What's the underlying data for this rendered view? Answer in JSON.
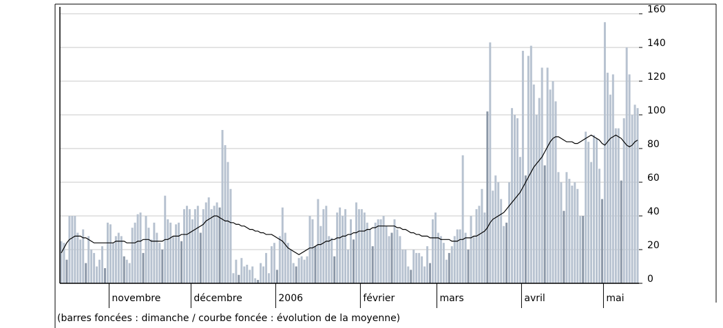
{
  "chart_data": {
    "type": "bar",
    "caption": "(barres foncées : dimanche / courbe foncée : évolution de la moyenne)",
    "categories": [
      null,
      null,
      null,
      null,
      null,
      null,
      null,
      null,
      null,
      null,
      null,
      null,
      null,
      null,
      null,
      null,
      null,
      null,
      "novembre",
      null,
      null,
      null,
      null,
      null,
      null,
      null,
      null,
      null,
      null,
      null,
      null,
      null,
      null,
      null,
      null,
      null,
      null,
      null,
      null,
      null,
      null,
      null,
      null,
      null,
      null,
      null,
      null,
      null,
      "décembre",
      null,
      null,
      null,
      null,
      null,
      null,
      null,
      null,
      null,
      null,
      null,
      null,
      null,
      null,
      null,
      null,
      null,
      null,
      null,
      null,
      null,
      null,
      null,
      null,
      null,
      null,
      null,
      null,
      null,
      null,
      "2006",
      null,
      null,
      null,
      null,
      null,
      null,
      null,
      null,
      null,
      null,
      null,
      null,
      null,
      null,
      null,
      null,
      null,
      null,
      null,
      null,
      null,
      null,
      null,
      null,
      null,
      null,
      null,
      null,
      null,
      null,
      "février",
      null,
      null,
      null,
      null,
      null,
      null,
      null,
      null,
      null,
      null,
      null,
      null,
      null,
      null,
      null,
      null,
      null,
      null,
      null,
      null,
      null,
      null,
      null,
      null,
      null,
      null,
      null,
      "mars",
      null,
      null,
      null,
      null,
      null,
      null,
      null,
      null,
      null,
      null,
      null,
      null,
      null,
      null,
      null,
      null,
      null,
      null,
      null,
      null,
      null,
      null,
      null,
      null,
      null,
      null,
      null,
      null,
      null,
      null,
      "avril",
      null,
      null,
      null,
      null,
      null,
      null,
      null,
      null,
      null,
      null,
      null,
      null,
      null,
      null,
      null,
      null,
      null,
      null,
      null,
      null,
      null,
      null,
      null,
      null,
      null,
      null,
      null,
      null,
      null,
      "mai",
      null,
      null,
      null,
      null,
      null,
      null,
      null,
      null,
      null,
      null,
      null,
      null
    ],
    "series": [
      {
        "color": "#b7c2d0",
        "values": [
          25,
          24,
          null,
          40,
          40,
          40,
          30,
          26,
          32,
          null,
          28,
          20,
          18,
          10,
          14,
          22,
          null,
          36,
          35,
          24,
          28,
          30,
          28,
          null,
          14,
          12,
          33,
          36,
          41,
          42,
          null,
          40,
          33,
          26,
          36,
          30,
          24,
          null,
          52,
          38,
          36,
          28,
          35,
          36,
          null,
          44,
          46,
          44,
          38,
          44,
          46,
          null,
          44,
          48,
          51,
          44,
          46,
          48,
          null,
          91,
          82,
          72,
          56,
          6,
          14,
          null,
          15,
          10,
          11,
          8,
          10,
          3,
          null,
          12,
          10,
          18,
          6,
          22,
          24,
          null,
          28,
          45,
          30,
          24,
          20,
          12,
          null,
          15,
          16,
          14,
          16,
          40,
          38,
          null,
          50,
          34,
          44,
          46,
          28,
          27,
          null,
          42,
          45,
          40,
          44,
          20,
          38,
          null,
          48,
          44,
          44,
          42,
          36,
          32,
          null,
          36,
          38,
          38,
          40,
          34,
          28,
          null,
          38,
          32,
          28,
          20,
          20,
          10,
          null,
          20,
          18,
          18,
          16,
          10,
          22,
          null,
          38,
          42,
          30,
          28,
          24,
          14,
          null,
          22,
          28,
          32,
          32,
          76,
          30,
          null,
          40,
          28,
          44,
          46,
          56,
          42,
          null,
          143,
          55,
          64,
          60,
          50,
          34,
          null,
          60,
          104,
          100,
          98,
          75,
          138,
          null,
          135,
          141,
          118,
          100,
          110,
          128,
          null,
          128,
          115,
          120,
          108,
          66,
          60,
          null,
          66,
          62,
          58,
          60,
          56,
          40,
          null,
          90,
          84,
          72,
          88,
          86,
          68,
          null,
          155,
          125,
          112,
          124,
          92,
          92,
          null,
          98,
          140,
          124,
          100,
          106,
          104
        ]
      },
      {
        "color": "#8b97a7",
        "values": [
          null,
          null,
          14,
          null,
          null,
          null,
          null,
          null,
          null,
          12,
          null,
          null,
          null,
          null,
          null,
          null,
          9,
          null,
          null,
          null,
          null,
          null,
          null,
          16,
          null,
          null,
          null,
          null,
          null,
          null,
          18,
          null,
          null,
          null,
          null,
          null,
          null,
          20,
          null,
          null,
          null,
          null,
          null,
          null,
          25,
          null,
          null,
          null,
          null,
          null,
          null,
          30,
          null,
          null,
          null,
          null,
          null,
          null,
          45,
          null,
          null,
          null,
          null,
          null,
          null,
          5,
          null,
          null,
          null,
          null,
          null,
          null,
          2,
          null,
          null,
          null,
          null,
          null,
          null,
          8,
          null,
          null,
          null,
          null,
          null,
          null,
          10,
          null,
          null,
          null,
          null,
          null,
          null,
          22,
          null,
          null,
          null,
          null,
          null,
          null,
          16,
          null,
          null,
          null,
          null,
          null,
          null,
          26,
          null,
          null,
          null,
          null,
          null,
          null,
          22,
          null,
          null,
          null,
          null,
          null,
          null,
          30,
          null,
          null,
          null,
          null,
          null,
          null,
          8,
          null,
          null,
          null,
          null,
          null,
          null,
          12,
          null,
          null,
          null,
          null,
          null,
          null,
          18,
          null,
          null,
          null,
          null,
          null,
          null,
          20,
          null,
          null,
          null,
          null,
          null,
          null,
          102,
          null,
          null,
          null,
          null,
          null,
          null,
          36,
          null,
          null,
          null,
          null,
          null,
          null,
          64,
          null,
          null,
          null,
          null,
          null,
          null,
          70,
          null,
          null,
          null,
          null,
          null,
          null,
          43,
          null,
          null,
          null,
          null,
          null,
          null,
          40,
          null,
          null,
          null,
          null,
          null,
          null,
          50,
          null,
          null,
          null,
          null,
          null,
          null,
          61,
          null,
          null,
          null,
          null,
          null,
          null
        ]
      },
      {
        "type": "line",
        "color": "#000000",
        "values": [
          18,
          21,
          24,
          26,
          27,
          28,
          28,
          28,
          27,
          27,
          26,
          25,
          24,
          24,
          24,
          24,
          24,
          24,
          24,
          24,
          25,
          25,
          25,
          25,
          24,
          24,
          24,
          24,
          25,
          25,
          26,
          26,
          26,
          25,
          25,
          25,
          25,
          25,
          26,
          26,
          27,
          28,
          28,
          28,
          29,
          29,
          29,
          30,
          31,
          32,
          33,
          34,
          35,
          37,
          38,
          39,
          40,
          40,
          39,
          38,
          37,
          37,
          36,
          36,
          35,
          35,
          34,
          34,
          33,
          32,
          32,
          31,
          31,
          30,
          30,
          29,
          29,
          29,
          28,
          27,
          26,
          25,
          23,
          21,
          20,
          19,
          18,
          17,
          18,
          19,
          20,
          21,
          21,
          22,
          23,
          23,
          24,
          25,
          25,
          26,
          26,
          27,
          27,
          28,
          28,
          29,
          29,
          30,
          30,
          31,
          31,
          31,
          32,
          32,
          33,
          33,
          34,
          34,
          34,
          34,
          34,
          34,
          34,
          33,
          33,
          32,
          32,
          31,
          30,
          30,
          29,
          29,
          28,
          28,
          28,
          27,
          27,
          27,
          27,
          26,
          26,
          26,
          26,
          25,
          25,
          25,
          26,
          26,
          27,
          27,
          27,
          28,
          28,
          29,
          30,
          31,
          33,
          36,
          38,
          39,
          40,
          41,
          42,
          44,
          46,
          48,
          50,
          52,
          54,
          57,
          60,
          63,
          66,
          69,
          71,
          73,
          75,
          78,
          81,
          84,
          86,
          87,
          87,
          86,
          85,
          84,
          84,
          84,
          83,
          83,
          84,
          85,
          86,
          87,
          88,
          87,
          86,
          85,
          83,
          82,
          84,
          86,
          87,
          88,
          87,
          86,
          84,
          82,
          81,
          82,
          84,
          85
        ]
      }
    ],
    "ylim": [
      0,
      160
    ],
    "yticks": [
      0,
      20,
      40,
      60,
      80,
      100,
      120,
      140,
      160
    ],
    "grid": true
  }
}
